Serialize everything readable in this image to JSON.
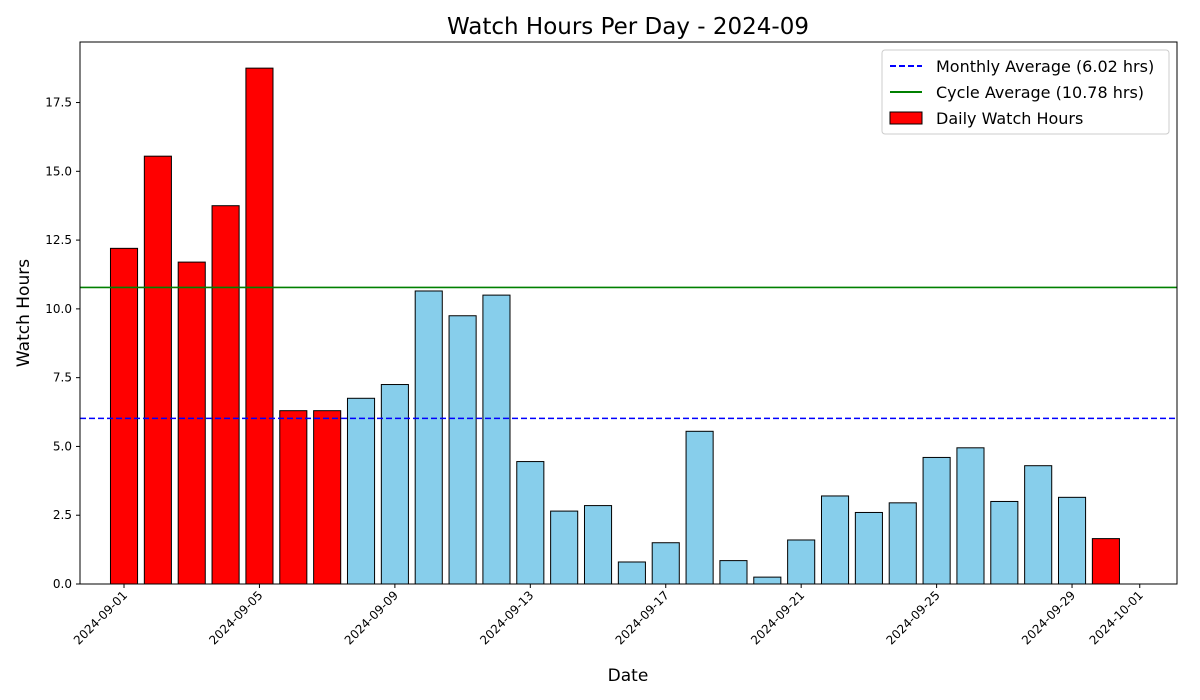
{
  "chart_data": {
    "type": "bar",
    "title": "Watch Hours Per Day - 2024-09",
    "xlabel": "Date",
    "ylabel": "Watch Hours",
    "ylim": [
      0,
      19.7
    ],
    "yticks": [
      0.0,
      2.5,
      5.0,
      7.5,
      10.0,
      12.5,
      15.0,
      17.5
    ],
    "ytick_labels": [
      "0.0",
      "2.5",
      "5.0",
      "7.5",
      "10.0",
      "12.5",
      "15.0",
      "17.5"
    ],
    "xlim": [
      "2024-08-30",
      "2024-10-02"
    ],
    "xtick_labels": [
      "2024-09-01",
      "2024-09-05",
      "2024-09-09",
      "2024-09-13",
      "2024-09-17",
      "2024-09-21",
      "2024-09-25",
      "2024-09-29",
      "2024-10-01"
    ],
    "categories": [
      "2024-09-01",
      "2024-09-02",
      "2024-09-03",
      "2024-09-04",
      "2024-09-05",
      "2024-09-06",
      "2024-09-07",
      "2024-09-08",
      "2024-09-09",
      "2024-09-10",
      "2024-09-11",
      "2024-09-12",
      "2024-09-13",
      "2024-09-14",
      "2024-09-15",
      "2024-09-16",
      "2024-09-17",
      "2024-09-18",
      "2024-09-19",
      "2024-09-20",
      "2024-09-21",
      "2024-09-22",
      "2024-09-23",
      "2024-09-24",
      "2024-09-25",
      "2024-09-26",
      "2024-09-27",
      "2024-09-28",
      "2024-09-29",
      "2024-09-30"
    ],
    "values": [
      12.2,
      15.55,
      11.7,
      13.75,
      18.75,
      6.3,
      6.3,
      6.75,
      7.25,
      10.65,
      9.75,
      10.5,
      4.45,
      2.65,
      2.85,
      0.8,
      1.5,
      5.55,
      0.85,
      0.25,
      1.6,
      3.2,
      2.6,
      2.95,
      4.6,
      4.95,
      3.0,
      4.3,
      3.15,
      1.65
    ],
    "bar_colors": [
      "#ff0000",
      "#ff0000",
      "#ff0000",
      "#ff0000",
      "#ff0000",
      "#ff0000",
      "#ff0000",
      "#87ceeb",
      "#87ceeb",
      "#87ceeb",
      "#87ceeb",
      "#87ceeb",
      "#87ceeb",
      "#87ceeb",
      "#87ceeb",
      "#87ceeb",
      "#87ceeb",
      "#87ceeb",
      "#87ceeb",
      "#87ceeb",
      "#87ceeb",
      "#87ceeb",
      "#87ceeb",
      "#87ceeb",
      "#87ceeb",
      "#87ceeb",
      "#87ceeb",
      "#87ceeb",
      "#87ceeb",
      "#ff0000"
    ],
    "reference_lines": [
      {
        "name": "Monthly Average (6.02 hrs)",
        "value": 6.02,
        "color": "#0000ff",
        "style": "dashed"
      },
      {
        "name": "Cycle Average (10.78 hrs)",
        "value": 10.78,
        "color": "#008000",
        "style": "solid"
      }
    ],
    "legend": {
      "placement": "top-right",
      "entries": [
        {
          "label": "Monthly Average (6.02 hrs)",
          "kind": "dashed-line",
          "color": "#0000ff"
        },
        {
          "label": "Cycle Average (10.78 hrs)",
          "kind": "line",
          "color": "#008000"
        },
        {
          "label": "Daily Watch Hours",
          "kind": "patch",
          "color": "#ff0000"
        }
      ]
    },
    "grid": false
  }
}
